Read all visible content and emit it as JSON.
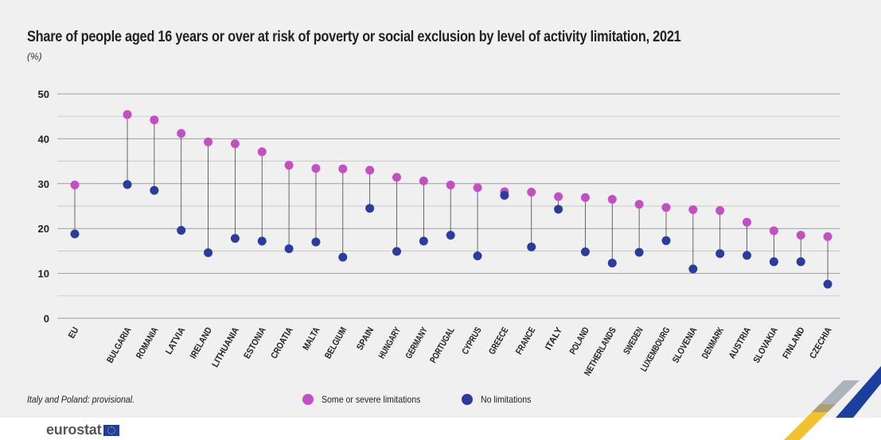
{
  "title": "Share of people aged 16 years or over at risk of poverty or social exclusion by level of activity limitation, 2021",
  "subtitle": "(%)",
  "footnote": "Italy and Poland: provisional.",
  "logo": "eurostat",
  "colors": {
    "some_or_severe": "#c44fc4",
    "none": "#2a3d9e",
    "grid": "#bdbdbd",
    "stem": "#444444"
  },
  "chart_data": {
    "type": "dot",
    "title": "Share of people aged 16 years or over at risk of poverty or social exclusion by level of activity limitation, 2021",
    "ylabel": "(%)",
    "ylim": [
      0,
      50
    ],
    "yticks": [
      0,
      10,
      20,
      30,
      40,
      50
    ],
    "legend_position": "bottom",
    "categories": [
      "EU",
      "BULGARIA",
      "ROMANIA",
      "LATVIA",
      "IRELAND",
      "LITHUANIA",
      "ESTONIA",
      "CROATIA",
      "MALTA",
      "BELGIUM",
      "SPAIN",
      "HUNGARY",
      "GERMANY",
      "PORTUGAL",
      "CYPRUS",
      "GREECE",
      "FRANCE",
      "ITALY",
      "POLAND",
      "NETHERLANDS",
      "SWEDEN",
      "LUXEMBOURG",
      "SLOVENIA",
      "DENMARK",
      "AUSTRIA",
      "SLOVAKIA",
      "FINLAND",
      "CZECHIA"
    ],
    "series": [
      {
        "name": "Some or severe limitations",
        "values": [
          29.7,
          45.4,
          44.2,
          41.2,
          39.3,
          38.9,
          37.1,
          34.1,
          33.4,
          33.3,
          33.0,
          31.4,
          30.6,
          29.7,
          29.1,
          28.2,
          28.1,
          27.1,
          26.9,
          26.5,
          25.4,
          24.7,
          24.2,
          24.0,
          21.4,
          19.5,
          18.5,
          18.2
        ]
      },
      {
        "name": "No limitations",
        "values": [
          18.8,
          29.8,
          28.5,
          19.6,
          14.6,
          17.8,
          17.2,
          15.5,
          17.0,
          13.6,
          24.5,
          14.9,
          17.2,
          18.5,
          13.9,
          27.4,
          15.9,
          24.3,
          14.8,
          12.3,
          14.7,
          17.3,
          11.0,
          14.4,
          14.0,
          12.6,
          12.6,
          7.6
        ]
      }
    ]
  }
}
